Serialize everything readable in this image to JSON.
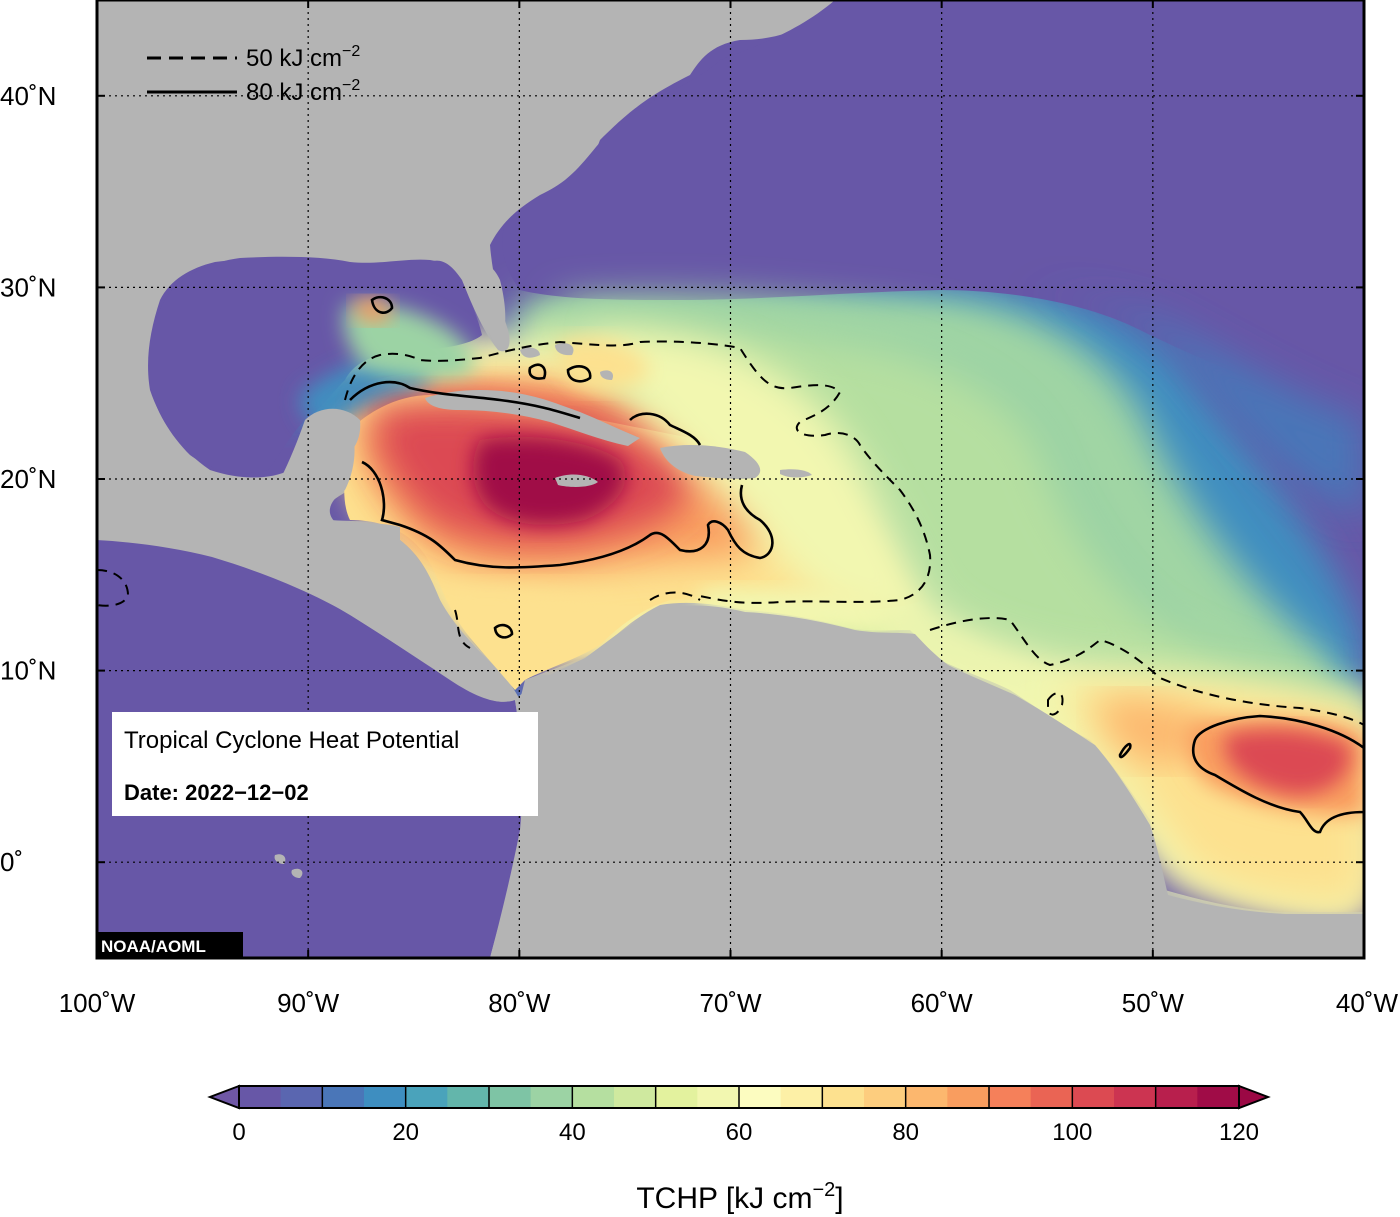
{
  "map": {
    "title": "Tropical Cyclone Heat Potential",
    "date_label": "Date: 2022−12−02",
    "credit": "NOAA/AOML",
    "lon_range": [
      -100,
      -40
    ],
    "lat_range": [
      -5,
      45
    ],
    "lon_ticks": [
      {
        "value": -100,
        "label": "100˚W"
      },
      {
        "value": -90,
        "label": "90˚W"
      },
      {
        "value": -80,
        "label": "80˚W"
      },
      {
        "value": -70,
        "label": "70˚W"
      },
      {
        "value": -60,
        "label": "60˚W"
      },
      {
        "value": -50,
        "label": "50˚W"
      },
      {
        "value": -40,
        "label": "40˚W"
      }
    ],
    "lat_ticks": [
      {
        "value": 40,
        "label": "40˚N"
      },
      {
        "value": 30,
        "label": "30˚N"
      },
      {
        "value": 20,
        "label": "20˚N"
      },
      {
        "value": 10,
        "label": "10˚N"
      },
      {
        "value": 0,
        "label": "0˚"
      }
    ],
    "grid": "dotted",
    "colors": {
      "land": "#b4b4b4",
      "low_ocean": "#6757a7",
      "contour": "#000000"
    }
  },
  "legend": {
    "dashed": {
      "text": "50 kJ cm",
      "sup": "−2",
      "value": 50
    },
    "solid": {
      "text": "80 kJ cm",
      "sup": "−2",
      "value": 80
    }
  },
  "colorbar": {
    "label_main": "TCHP [kJ cm",
    "label_sup": "−2",
    "label_end": "]",
    "min": 0,
    "max": 120,
    "step": 5,
    "ticks": [
      {
        "value": 0,
        "label": "0"
      },
      {
        "value": 20,
        "label": "20"
      },
      {
        "value": 40,
        "label": "40"
      },
      {
        "value": 60,
        "label": "60"
      },
      {
        "value": 80,
        "label": "80"
      },
      {
        "value": 100,
        "label": "100"
      },
      {
        "value": 120,
        "label": "120"
      }
    ],
    "colors": [
      "#6757a7",
      "#5a66b0",
      "#4a76b8",
      "#3e8ec0",
      "#4aa3bb",
      "#63b6ab",
      "#7ec4a5",
      "#9cd3a4",
      "#b5dfa0",
      "#cfe99f",
      "#e3f29e",
      "#f2f7b0",
      "#fcfcc0",
      "#fdf0a6",
      "#fde18f",
      "#fdcd7e",
      "#fcb76e",
      "#f99d5f",
      "#f5805a",
      "#ea6454",
      "#dc4a52",
      "#cc3451",
      "#b81f4d",
      "#a00c47"
    ],
    "under_color": "#6f57a6",
    "over_color": "#9b0844"
  }
}
